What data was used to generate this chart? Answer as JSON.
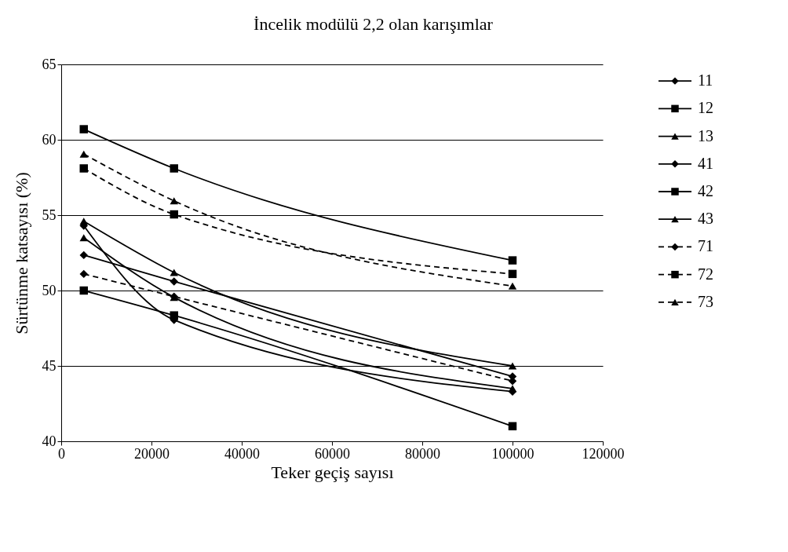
{
  "chart_data": {
    "type": "line",
    "title": "İncelik modülü 2,2 olan karışımlar",
    "xlabel": "Teker geçiş sayısı",
    "ylabel": "Sürtünme katsayısı (%)",
    "x": [
      5000,
      25000,
      100000
    ],
    "series": [
      {
        "name": "11",
        "color": "#000000",
        "values": [
          54.3,
          48.05,
          43.3
        ],
        "marker": "diamond",
        "line_style": "solid"
      },
      {
        "name": "12",
        "color": "#000000",
        "values": [
          50.0,
          48.35,
          41.0
        ],
        "marker": "square",
        "line_style": "solid"
      },
      {
        "name": "13",
        "color": "#000000",
        "values": [
          53.5,
          49.55,
          43.5
        ],
        "marker": "triangle",
        "line_style": "solid"
      },
      {
        "name": "41",
        "color": "#000000",
        "values": [
          52.35,
          50.6,
          44.3
        ],
        "marker": "diamond",
        "line_style": "solid"
      },
      {
        "name": "42",
        "color": "#000000",
        "values": [
          60.7,
          58.1,
          52.0
        ],
        "marker": "square",
        "line_style": "solid"
      },
      {
        "name": "43",
        "color": "#000000",
        "values": [
          54.6,
          51.2,
          45.0
        ],
        "marker": "triangle",
        "line_style": "solid"
      },
      {
        "name": "71",
        "color": "#000000",
        "values": [
          51.1,
          49.6,
          44.0
        ],
        "marker": "diamond",
        "line_style": "dashed"
      },
      {
        "name": "72",
        "color": "#000000",
        "values": [
          58.1,
          55.05,
          51.1
        ],
        "marker": "square",
        "line_style": "dashed"
      },
      {
        "name": "73",
        "color": "#000000",
        "values": [
          59.05,
          55.95,
          50.3
        ],
        "marker": "triangle",
        "line_style": "dashed"
      }
    ],
    "xlim": [
      0,
      120000
    ],
    "xticks": [
      0,
      20000,
      40000,
      60000,
      80000,
      100000,
      120000
    ],
    "ylim": [
      40,
      65
    ],
    "yticks": [
      40,
      45,
      50,
      55,
      60,
      65
    ],
    "grid": "y",
    "legend": "right"
  }
}
